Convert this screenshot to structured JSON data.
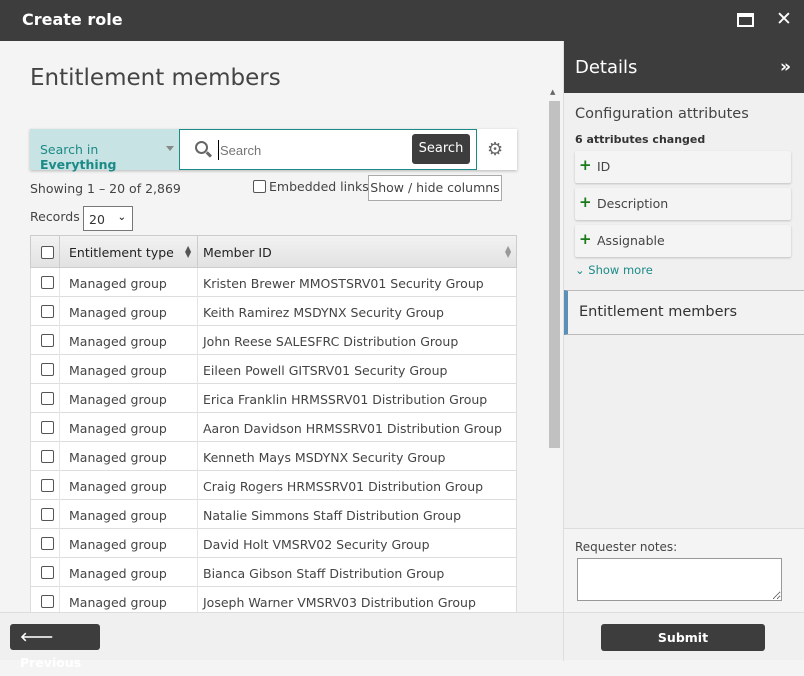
{
  "window": {
    "title": "Create role"
  },
  "main": {
    "heading": "Entitlement members",
    "search": {
      "scope_prefix": "Search in",
      "scope_value": "Everything",
      "placeholder": "Search",
      "button": "Search"
    },
    "showing": "Showing 1 – 20 of 2,869",
    "embedded_links": "Embedded links",
    "show_hide_columns": "Show / hide columns",
    "records_label": "Records",
    "records_value": "20",
    "columns": [
      "Entitlement type",
      "Member ID"
    ],
    "rows": [
      {
        "type": "Managed group",
        "member": "Kristen Brewer MMOSTSRV01 Security Group"
      },
      {
        "type": "Managed group",
        "member": "Keith Ramirez MSDYNX Security Group"
      },
      {
        "type": "Managed group",
        "member": "John Reese SALESFRC Distribution Group"
      },
      {
        "type": "Managed group",
        "member": "Eileen Powell GITSRV01 Security Group"
      },
      {
        "type": "Managed group",
        "member": "Erica Franklin HRMSSRV01 Distribution Group"
      },
      {
        "type": "Managed group",
        "member": "Aaron Davidson HRMSSRV01 Distribution Group"
      },
      {
        "type": "Managed group",
        "member": "Kenneth Mays MSDYNX Security Group"
      },
      {
        "type": "Managed group",
        "member": "Craig Rogers HRMSSRV01 Distribution Group"
      },
      {
        "type": "Managed group",
        "member": "Natalie Simmons Staff Distribution Group"
      },
      {
        "type": "Managed group",
        "member": "David Holt VMSRV02 Security Group"
      },
      {
        "type": "Managed group",
        "member": "Bianca Gibson Staff Distribution Group"
      },
      {
        "type": "Managed group",
        "member": "Joseph Warner VMSRV03 Distribution Group"
      }
    ]
  },
  "details": {
    "title": "Details",
    "config_title": "Configuration attributes",
    "changed": "6 attributes changed",
    "attributes": [
      "ID",
      "Description",
      "Assignable"
    ],
    "show_more": "Show more",
    "section": "Entitlement members",
    "requester_notes": "Requester notes:"
  },
  "footer": {
    "previous": "Previous",
    "submit": "Submit"
  },
  "colors": {
    "accent": "#1c8a87",
    "dark": "#3d3d3d",
    "added": "#1a7a1a"
  }
}
